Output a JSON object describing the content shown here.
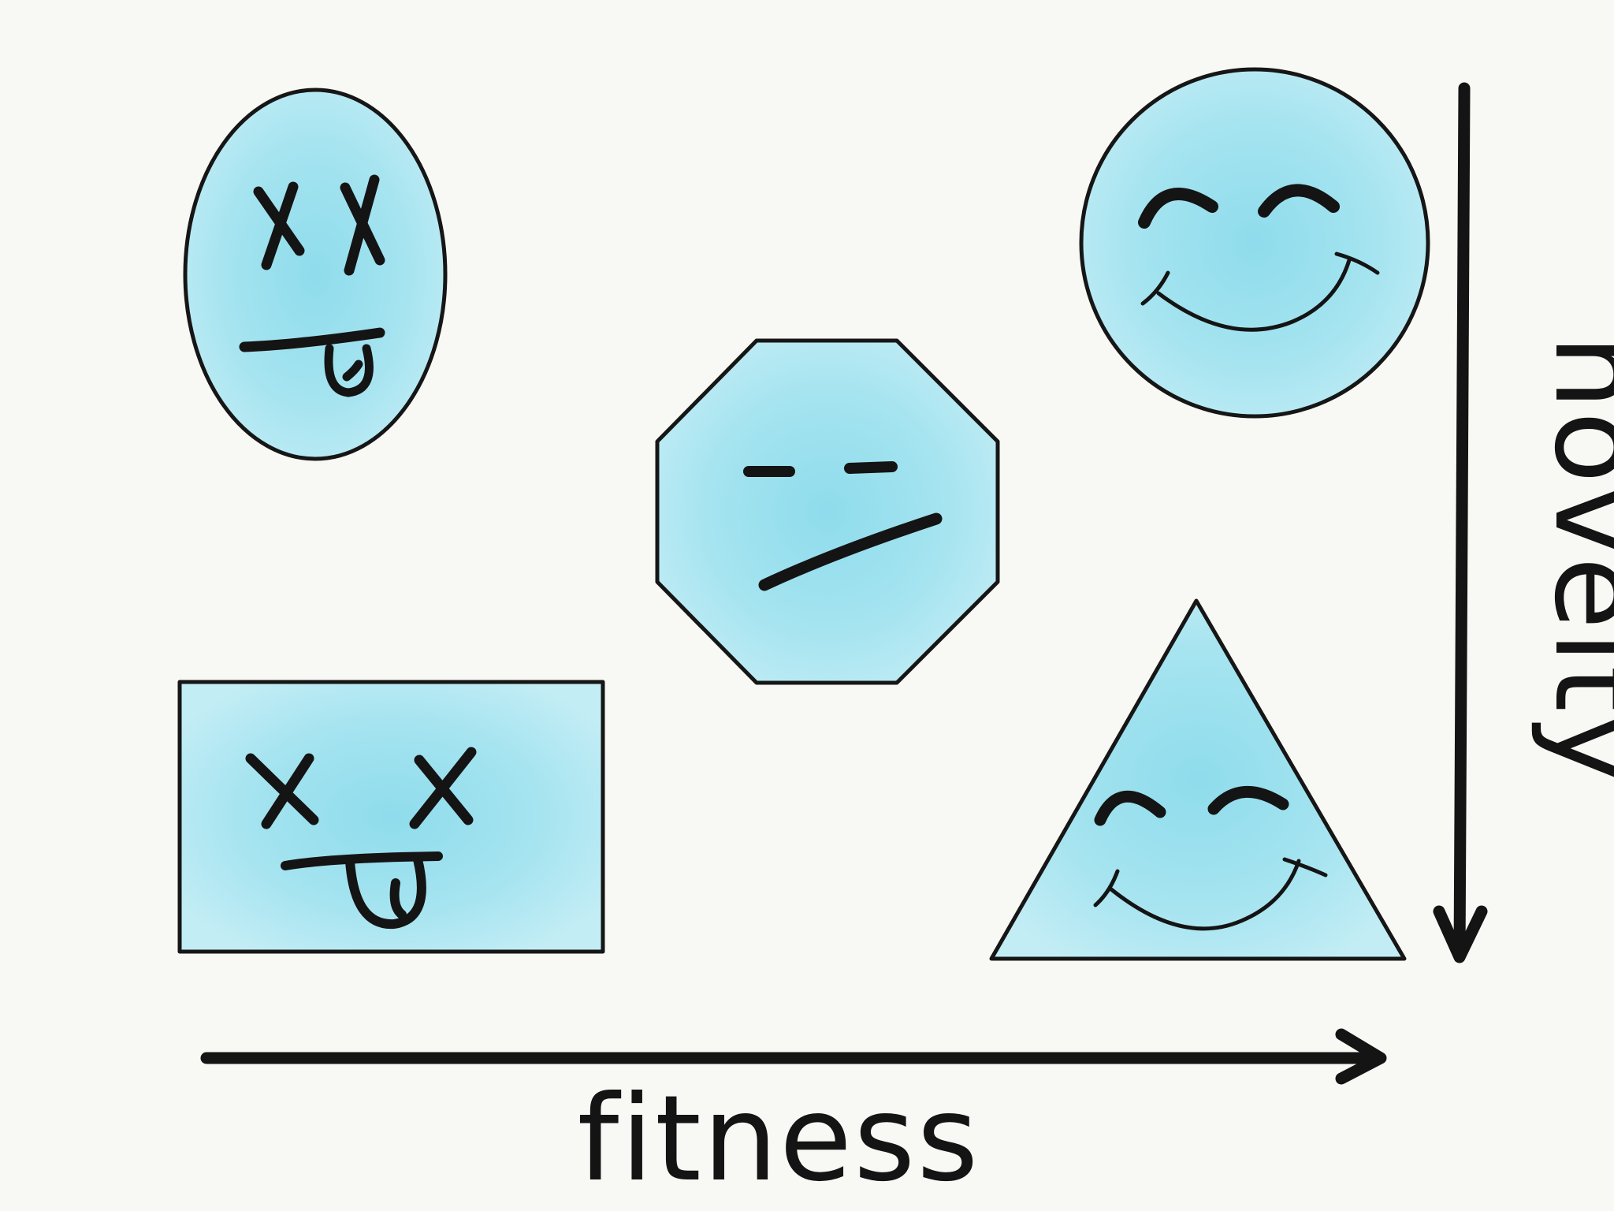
{
  "axes": {
    "x_label": "fitness",
    "y_label": "novelty"
  },
  "colors": {
    "background": "#f8f8f4",
    "shape_fill": "#9fe3ef",
    "shape_fill_light": "#c6eef5",
    "ink": "#141414"
  },
  "shapes": [
    {
      "name": "oval",
      "expression": "dead-tongue-out"
    },
    {
      "name": "rectangle",
      "expression": "dead-tongue-out"
    },
    {
      "name": "octagon",
      "expression": "skeptical"
    },
    {
      "name": "circle",
      "expression": "happy"
    },
    {
      "name": "triangle",
      "expression": "happy"
    }
  ]
}
